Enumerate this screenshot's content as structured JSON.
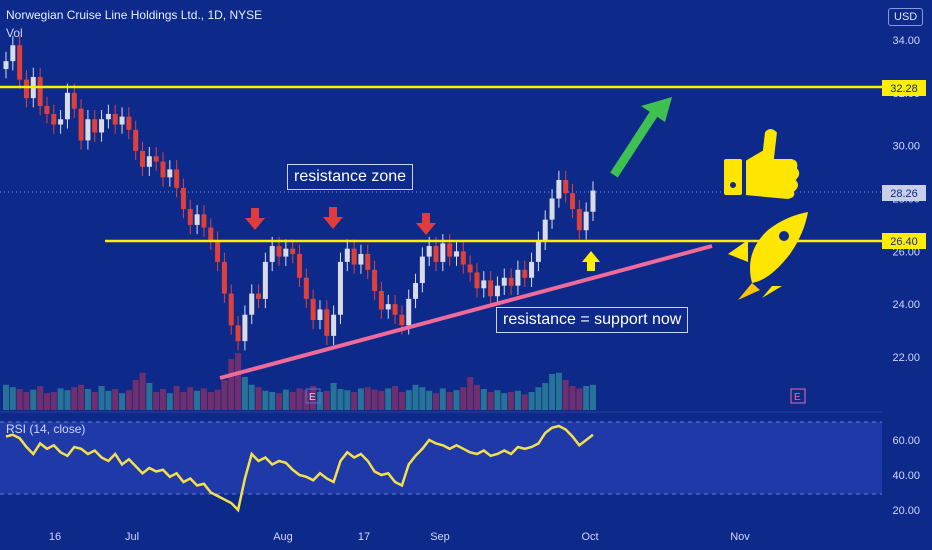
{
  "header": {
    "title": "Norwegian Cruise Line Holdings Ltd., 1D, NYSE",
    "vol_label": "Vol",
    "rsi_label": "RSI (14, close)",
    "currency": "USD"
  },
  "annotations": {
    "resistance_zone": "resistance zone",
    "support_now": "resistance = support now"
  },
  "price_tags": {
    "upper": "32.28",
    "current": "28.26",
    "middle": "26.40"
  },
  "colors": {
    "bg": "#0d2a8a",
    "yellow": "#ffee00",
    "pink": "#f06a9a",
    "green_arrow": "#3ec150",
    "up": "#d9dce6",
    "down": "#e0403a",
    "rsi_line": "#f5e04b"
  },
  "chart_data": {
    "type": "candlestick",
    "title": "Norwegian Cruise Line Holdings Ltd., 1D, NYSE",
    "price_ylim": [
      19.5,
      34.5
    ],
    "price_ticks": [
      22,
      24,
      26,
      28,
      30,
      32,
      34
    ],
    "price_tick_labels": [
      "22.00",
      "24.00",
      "26.00",
      "28.00",
      "30.00",
      "32.00",
      "34.00"
    ],
    "x_tick_labels": [
      "16",
      "Jul",
      "Aug",
      "17",
      "Sep",
      "Oct",
      "Nov"
    ],
    "horizontal_levels": [
      {
        "label": "32.28",
        "value": 32.28
      },
      {
        "label": "26.40",
        "value": 26.4
      }
    ],
    "last_price": 28.26,
    "ohlc_close_series": [
      33.2,
      33.8,
      32.5,
      31.8,
      32.6,
      31.5,
      31.2,
      30.8,
      31.0,
      32.0,
      31.4,
      30.2,
      31.0,
      30.5,
      31.0,
      31.2,
      30.8,
      31.1,
      30.6,
      29.8,
      29.2,
      29.6,
      29.4,
      28.8,
      29.1,
      28.4,
      27.6,
      27.0,
      27.4,
      26.9,
      26.4,
      25.6,
      24.4,
      23.2,
      22.6,
      23.6,
      24.4,
      24.2,
      25.6,
      26.2,
      25.8,
      26.1,
      25.9,
      25.0,
      24.2,
      23.4,
      23.8,
      22.8,
      23.6,
      25.6,
      26.1,
      25.5,
      25.9,
      25.3,
      24.5,
      23.8,
      24.0,
      23.6,
      23.2,
      24.2,
      24.8,
      25.8,
      26.2,
      25.6,
      26.3,
      25.8,
      26.0,
      25.5,
      25.2,
      24.6,
      24.9,
      24.3,
      24.7,
      25.0,
      24.7,
      25.3,
      25.0,
      25.6,
      26.4,
      27.2,
      28.0,
      28.7,
      28.2,
      27.6,
      26.8,
      27.5,
      28.3
    ],
    "volume_series": [
      0.42,
      0.38,
      0.35,
      0.3,
      0.34,
      0.4,
      0.28,
      0.3,
      0.36,
      0.33,
      0.38,
      0.42,
      0.35,
      0.3,
      0.4,
      0.32,
      0.35,
      0.28,
      0.33,
      0.5,
      0.62,
      0.45,
      0.3,
      0.35,
      0.28,
      0.4,
      0.3,
      0.38,
      0.32,
      0.36,
      0.3,
      0.34,
      0.5,
      0.85,
      0.95,
      0.55,
      0.42,
      0.38,
      0.32,
      0.3,
      0.28,
      0.34,
      0.3,
      0.36,
      0.33,
      0.4,
      0.3,
      0.32,
      0.45,
      0.35,
      0.33,
      0.3,
      0.36,
      0.38,
      0.34,
      0.32,
      0.36,
      0.4,
      0.3,
      0.33,
      0.42,
      0.38,
      0.32,
      0.28,
      0.36,
      0.3,
      0.33,
      0.38,
      0.55,
      0.42,
      0.35,
      0.3,
      0.33,
      0.28,
      0.3,
      0.32,
      0.26,
      0.3,
      0.38,
      0.45,
      0.6,
      0.62,
      0.5,
      0.4,
      0.36,
      0.4,
      0.42
    ],
    "rsi": {
      "label": "RSI (14, close)",
      "ylim": [
        15,
        75
      ],
      "ticks": [
        20,
        40,
        60
      ],
      "tick_labels": [
        "20.00",
        "40.00",
        "60.00"
      ],
      "bands": [
        30,
        70
      ],
      "values": [
        62,
        63,
        61,
        56,
        52,
        58,
        55,
        57,
        53,
        51,
        56,
        55,
        52,
        54,
        50,
        48,
        52,
        46,
        49,
        45,
        41,
        44,
        42,
        43,
        39,
        41,
        36,
        38,
        34,
        35,
        30,
        28,
        26,
        24,
        20,
        38,
        52,
        48,
        50,
        46,
        48,
        47,
        43,
        40,
        39,
        37,
        41,
        38,
        36,
        48,
        53,
        50,
        52,
        48,
        42,
        40,
        41,
        36,
        34,
        46,
        51,
        55,
        60,
        58,
        57,
        55,
        57,
        55,
        53,
        52,
        54,
        51,
        52,
        54,
        52,
        56,
        55,
        56,
        58,
        64,
        67,
        68,
        66,
        62,
        57,
        60,
        63
      ]
    }
  }
}
